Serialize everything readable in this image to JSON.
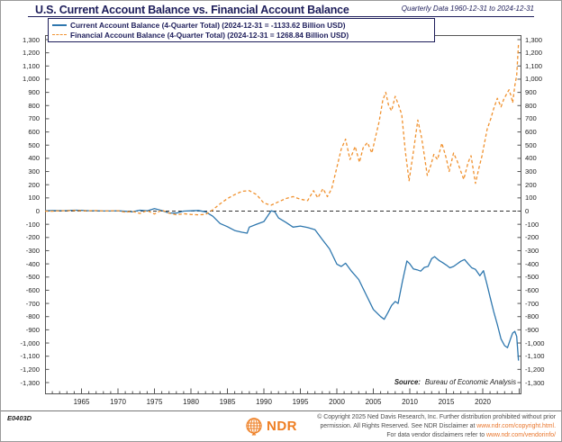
{
  "header": {
    "title": "U.S. Current Account Balance vs. Financial Account Balance",
    "date_range": "Quarterly Data 1960-12-31 to 2024-12-31"
  },
  "legend": {
    "items": [
      {
        "label": "Current Account Balance (4-Quarter Total) (2024-12-31 = -1133.62 Billion USD)",
        "color": "#2e77ae",
        "dash": false
      },
      {
        "label": "Financial Account Balance (4-Quarter Total) (2024-12-31 = 1268.84 Billion USD)",
        "color": "#f0912e",
        "dash": true
      }
    ]
  },
  "colors": {
    "current_account": "#2e77ae",
    "financial_account": "#f0912e",
    "navy_text": "#1d1d5a",
    "link_orange": "#e9762c",
    "logo_orange": "#ee7e22"
  },
  "source": {
    "prefix": "Source:",
    "text": "Bureau of Economic Analysis"
  },
  "footer": {
    "chart_code": "E0403D",
    "logo_text": "NDR",
    "line1": "© Copyright 2025 Ned Davis Research, Inc. Further distribution prohibited without prior",
    "line2_text": "permission. All Rights Reserved. See NDR Disclaimer at ",
    "line2_link": "www.ndr.com/copyright.html.",
    "line3_text": "For data vendor disclaimers refer to ",
    "line3_link": "www.ndr.com/vendorinfo/"
  },
  "chart_data": {
    "type": "line",
    "title": "U.S. Current Account Balance vs. Financial Account Balance",
    "xlabel": "Year",
    "ylabel": "Billion USD",
    "x_domain": [
      1960,
      2025.3
    ],
    "ylim": [
      -1300,
      1300
    ],
    "y_tick_step": 100,
    "grid": false,
    "zero_line": "dashed",
    "legend_position": "top-left",
    "y_tick_labels": [
      "1,300",
      "1,200",
      "1,100",
      "1,000",
      "900",
      "800",
      "700",
      "600",
      "500",
      "400",
      "300",
      "200",
      "100",
      "0",
      "-100",
      "-200",
      "-300",
      "-400",
      "-500",
      "-600",
      "-700",
      "-800",
      "-900",
      "-1,000",
      "-1,100",
      "-1,200",
      "-1,300"
    ],
    "x_tick_labels": [
      "1965",
      "1970",
      "1975",
      "1980",
      "1985",
      "1990",
      "1995",
      "2000",
      "2005",
      "2010",
      "2015",
      "2020"
    ],
    "series": [
      {
        "name": "Current Account Balance (4-Quarter Total)",
        "color": "#2e77ae",
        "dash": false,
        "last_value": -1133.62,
        "points": [
          [
            1960,
            2.8
          ],
          [
            1961,
            3.8
          ],
          [
            1962,
            3.4
          ],
          [
            1963,
            4.4
          ],
          [
            1964,
            6.8
          ],
          [
            1965,
            5.4
          ],
          [
            1966,
            3.0
          ],
          [
            1967,
            2.6
          ],
          [
            1968,
            0.6
          ],
          [
            1969,
            0.4
          ],
          [
            1970,
            2.3
          ],
          [
            1971,
            -1.4
          ],
          [
            1972,
            -5.8
          ],
          [
            1973,
            7.1
          ],
          [
            1974,
            2.0
          ],
          [
            1975,
            18.1
          ],
          [
            1976,
            4.3
          ],
          [
            1977,
            -14.3
          ],
          [
            1978,
            -15.1
          ],
          [
            1979,
            -0.3
          ],
          [
            1980,
            2.3
          ],
          [
            1981,
            5.0
          ],
          [
            1982,
            -5.5
          ],
          [
            1983,
            -38.7
          ],
          [
            1984,
            -94.3
          ],
          [
            1985,
            -118.2
          ],
          [
            1986,
            -147.2
          ],
          [
            1987,
            -160.7
          ],
          [
            1987.7,
            -167.0
          ],
          [
            1988,
            -121.2
          ],
          [
            1989,
            -99.5
          ],
          [
            1990,
            -79.0
          ],
          [
            1991,
            2.9
          ],
          [
            1991.5,
            -5.0
          ],
          [
            1992,
            -51.6
          ],
          [
            1993,
            -84.8
          ],
          [
            1994,
            -121.6
          ],
          [
            1995,
            -113.6
          ],
          [
            1996,
            -124.8
          ],
          [
            1997,
            -140.7
          ],
          [
            1998,
            -215.1
          ],
          [
            1999,
            -286.6
          ],
          [
            2000,
            -401.9
          ],
          [
            2000.6,
            -420.0
          ],
          [
            2001.2,
            -395.0
          ],
          [
            2002,
            -455.4
          ],
          [
            2003,
            -518.7
          ],
          [
            2004,
            -631.6
          ],
          [
            2005,
            -745.2
          ],
          [
            2006,
            -800.0
          ],
          [
            2006.5,
            -820.0
          ],
          [
            2007,
            -770.0
          ],
          [
            2007.5,
            -715.0
          ],
          [
            2008,
            -685.0
          ],
          [
            2008.4,
            -700.0
          ],
          [
            2009,
            -530.0
          ],
          [
            2009.6,
            -378.0
          ],
          [
            2010,
            -400.0
          ],
          [
            2010.5,
            -438.0
          ],
          [
            2011,
            -444.6
          ],
          [
            2011.5,
            -455.0
          ],
          [
            2012,
            -426.8
          ],
          [
            2012.5,
            -420.0
          ],
          [
            2013,
            -360.0
          ],
          [
            2013.4,
            -345.0
          ],
          [
            2014,
            -373.8
          ],
          [
            2014.5,
            -390.0
          ],
          [
            2015,
            -408.5
          ],
          [
            2015.5,
            -430.0
          ],
          [
            2016,
            -420.0
          ],
          [
            2016.5,
            -400.0
          ],
          [
            2017,
            -380.0
          ],
          [
            2017.5,
            -367.0
          ],
          [
            2018,
            -400.0
          ],
          [
            2018.5,
            -430.0
          ],
          [
            2019,
            -441.8
          ],
          [
            2019.6,
            -490.0
          ],
          [
            2020.1,
            -452.0
          ],
          [
            2020.6,
            -560.0
          ],
          [
            2021,
            -650.0
          ],
          [
            2021.5,
            -760.0
          ],
          [
            2022,
            -860.0
          ],
          [
            2022.5,
            -970.0
          ],
          [
            2023,
            -1020.0
          ],
          [
            2023.4,
            -1035.0
          ],
          [
            2023.8,
            -970.0
          ],
          [
            2024.1,
            -925.0
          ],
          [
            2024.4,
            -912.0
          ],
          [
            2024.65,
            -950.0
          ],
          [
            2024.9,
            -1133.62
          ]
        ]
      },
      {
        "name": "Financial Account Balance (4-Quarter Total)",
        "color": "#f0912e",
        "dash": true,
        "last_value": 1268.84,
        "points": [
          [
            1960,
            0
          ],
          [
            1961,
            -1
          ],
          [
            1962,
            2
          ],
          [
            1963,
            3
          ],
          [
            1964,
            5
          ],
          [
            1965,
            3
          ],
          [
            1966,
            2
          ],
          [
            1967,
            4
          ],
          [
            1968,
            1
          ],
          [
            1969,
            2
          ],
          [
            1970,
            3
          ],
          [
            1971,
            -8
          ],
          [
            1972,
            -2
          ],
          [
            1973,
            -18
          ],
          [
            1974,
            5
          ],
          [
            1975,
            -22
          ],
          [
            1976,
            8
          ],
          [
            1977,
            -15
          ],
          [
            1978,
            -28
          ],
          [
            1979,
            -20
          ],
          [
            1980,
            -25
          ],
          [
            1981,
            -28
          ],
          [
            1982,
            -25
          ],
          [
            1983,
            10
          ],
          [
            1984,
            55
          ],
          [
            1985,
            95
          ],
          [
            1986,
            125
          ],
          [
            1987,
            150
          ],
          [
            1988,
            155
          ],
          [
            1989,
            125
          ],
          [
            1990,
            60
          ],
          [
            1991,
            45
          ],
          [
            1992,
            70
          ],
          [
            1993,
            95
          ],
          [
            1994,
            110
          ],
          [
            1995,
            90
          ],
          [
            1996,
            80
          ],
          [
            1996.8,
            155
          ],
          [
            1997.4,
            100
          ],
          [
            1998.1,
            170
          ],
          [
            1998.7,
            110
          ],
          [
            1999.3,
            170
          ],
          [
            2000,
            330
          ],
          [
            2000.6,
            470
          ],
          [
            2001.2,
            545
          ],
          [
            2001.8,
            390
          ],
          [
            2002.5,
            490
          ],
          [
            2003.1,
            370
          ],
          [
            2003.6,
            480
          ],
          [
            2004.2,
            520
          ],
          [
            2004.8,
            440
          ],
          [
            2005.3,
            560
          ],
          [
            2005.8,
            680
          ],
          [
            2006.3,
            840
          ],
          [
            2006.7,
            900
          ],
          [
            2007.1,
            800
          ],
          [
            2007.5,
            760
          ],
          [
            2008.0,
            870
          ],
          [
            2008.5,
            800
          ],
          [
            2008.9,
            730
          ],
          [
            2009.4,
            450
          ],
          [
            2009.9,
            230
          ],
          [
            2010.5,
            450
          ],
          [
            2011.1,
            690
          ],
          [
            2011.6,
            560
          ],
          [
            2012,
            420
          ],
          [
            2012.4,
            270
          ],
          [
            2012.9,
            350
          ],
          [
            2013.3,
            430
          ],
          [
            2013.8,
            390
          ],
          [
            2014.4,
            515
          ],
          [
            2015,
            400
          ],
          [
            2015.4,
            300
          ],
          [
            2016,
            440
          ],
          [
            2016.5,
            380
          ],
          [
            2017,
            300
          ],
          [
            2017.4,
            240
          ],
          [
            2018,
            370
          ],
          [
            2018.4,
            420
          ],
          [
            2019,
            210
          ],
          [
            2019.5,
            330
          ],
          [
            2019.9,
            420
          ],
          [
            2020.6,
            620
          ],
          [
            2021.1,
            700
          ],
          [
            2021.5,
            775
          ],
          [
            2022,
            855
          ],
          [
            2022.5,
            790
          ],
          [
            2022.9,
            850
          ],
          [
            2023.3,
            890
          ],
          [
            2023.6,
            920
          ],
          [
            2023.9,
            870
          ],
          [
            2024.1,
            820
          ],
          [
            2024.4,
            950
          ],
          [
            2024.65,
            1030
          ],
          [
            2024.9,
            1268.84
          ]
        ]
      }
    ]
  }
}
